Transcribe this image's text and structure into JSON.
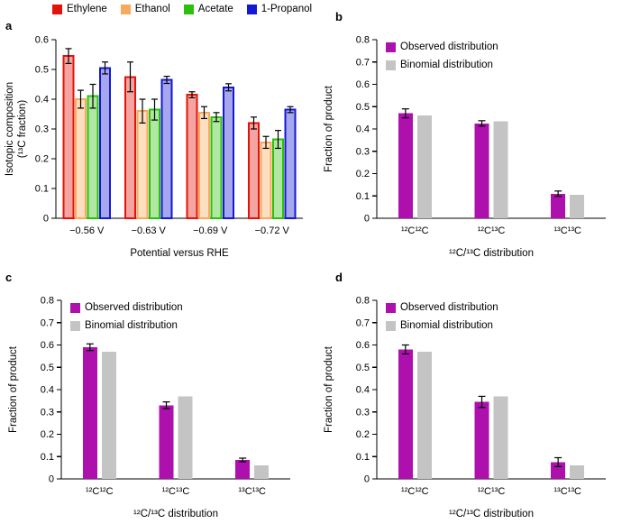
{
  "figure": {
    "panels": [
      {
        "label": "a"
      },
      {
        "label": "b"
      },
      {
        "label": "c"
      },
      {
        "label": "d"
      }
    ]
  },
  "chart_data": [
    {
      "type": "bar",
      "panel": "a",
      "legend_position": "top",
      "categories": [
        "−0.56 V",
        "−0.63 V",
        "−0.69 V",
        "−0.72 V"
      ],
      "series": [
        {
          "name": "Ethylene",
          "color": "#e3120b",
          "values": [
            0.545,
            0.475,
            0.415,
            0.32
          ],
          "errors": [
            0.025,
            0.05,
            0.01,
            0.02
          ]
        },
        {
          "name": "Ethanol",
          "color": "#f7a95c",
          "values": [
            0.4,
            0.36,
            0.355,
            0.255
          ],
          "errors": [
            0.03,
            0.04,
            0.02,
            0.02
          ]
        },
        {
          "name": "Acetate",
          "color": "#2cc00e",
          "values": [
            0.41,
            0.365,
            0.34,
            0.265
          ],
          "errors": [
            0.04,
            0.035,
            0.015,
            0.03
          ]
        },
        {
          "name": "1-Propanol",
          "color": "#1418d2",
          "values": [
            0.505,
            0.465,
            0.44,
            0.365
          ],
          "errors": [
            0.02,
            0.012,
            0.012,
            0.01
          ]
        }
      ],
      "xlabel": "Potential versus RHE",
      "ylabel_lines": [
        "Isotopic composition",
        "(¹³C fraction)"
      ],
      "ylim": [
        0,
        0.6
      ],
      "yticks": [
        0,
        0.1,
        0.2,
        0.3,
        0.4,
        0.5,
        0.6
      ],
      "yticklabels": [
        "0",
        "0.1",
        "0.2",
        "0.3",
        "0.4",
        "0.5",
        "0.6"
      ]
    },
    {
      "type": "bar",
      "panel": "b",
      "legend_position": "upper-left",
      "categories": [
        "¹²C¹²C",
        "¹²C¹³C",
        "¹³C¹³C"
      ],
      "series": [
        {
          "name": "Observed distribution",
          "color": "#ae10ae",
          "values": [
            0.47,
            0.425,
            0.11
          ],
          "errors": [
            0.02,
            0.012,
            0.012
          ]
        },
        {
          "name": "Binomial distribution",
          "color": "#c4c4c4",
          "values": [
            0.46,
            0.435,
            0.105
          ]
        }
      ],
      "xlabel": "¹²C/¹³C distribution",
      "ylabel": "Fraction of product",
      "ylim": [
        0,
        0.8
      ],
      "yticks": [
        0,
        0.1,
        0.2,
        0.3,
        0.4,
        0.5,
        0.6,
        0.7,
        0.8
      ],
      "yticklabels": [
        "0",
        "0.1",
        "0.2",
        "0.3",
        "0.4",
        "0.5",
        "0.6",
        "0.7",
        "0.8"
      ]
    },
    {
      "type": "bar",
      "panel": "c",
      "legend_position": "upper-left",
      "categories": [
        "¹²C¹²C",
        "¹²C¹³C",
        "¹³C¹³C"
      ],
      "series": [
        {
          "name": "Observed distribution",
          "color": "#ae10ae",
          "values": [
            0.59,
            0.33,
            0.085
          ],
          "errors": [
            0.015,
            0.015,
            0.008
          ]
        },
        {
          "name": "Binomial distribution",
          "color": "#c4c4c4",
          "values": [
            0.57,
            0.37,
            0.06
          ]
        }
      ],
      "xlabel": "¹²C/¹³C distribution",
      "ylabel": "Fraction of product",
      "ylim": [
        0,
        0.8
      ],
      "yticks": [
        0,
        0.1,
        0.2,
        0.3,
        0.4,
        0.5,
        0.6,
        0.7,
        0.8
      ],
      "yticklabels": [
        "0",
        "0.1",
        "0.2",
        "0.3",
        "0.4",
        "0.5",
        "0.6",
        "0.7",
        "0.8"
      ]
    },
    {
      "type": "bar",
      "panel": "d",
      "legend_position": "upper-left",
      "categories": [
        "¹²C¹²C",
        "¹²C¹³C",
        "¹³C¹³C"
      ],
      "series": [
        {
          "name": "Observed distribution",
          "color": "#ae10ae",
          "values": [
            0.58,
            0.345,
            0.075
          ],
          "errors": [
            0.02,
            0.025,
            0.02
          ]
        },
        {
          "name": "Binomial distribution",
          "color": "#c4c4c4",
          "values": [
            0.57,
            0.37,
            0.06
          ]
        }
      ],
      "xlabel": "¹²C/¹³C distribution",
      "ylabel": "Fraction of product",
      "ylim": [
        0,
        0.8
      ],
      "yticks": [
        0,
        0.1,
        0.2,
        0.3,
        0.4,
        0.5,
        0.6,
        0.7,
        0.8
      ],
      "yticklabels": [
        "0",
        "0.1",
        "0.2",
        "0.3",
        "0.4",
        "0.5",
        "0.6",
        "0.7",
        "0.8"
      ]
    }
  ]
}
